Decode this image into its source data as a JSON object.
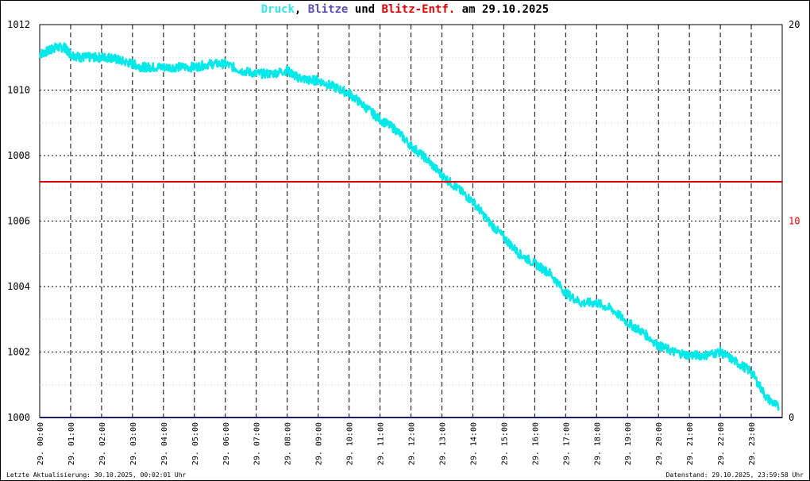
{
  "title": {
    "part1": "Druck",
    "sep1": ", ",
    "part2": "Blitze",
    "sep2": " und ",
    "part3": "Blitz-Entf.",
    "sep3": " am 29.10.2025",
    "color1": "#33e6e6",
    "color2": "#5a4fb4",
    "color3": "#e00000"
  },
  "footer": {
    "left": "Letzte Aktualisierung: 30.10.2025, 00:02:01 Uhr",
    "right": "Datenstand: 29.10.2025, 23:59:58 Uhr"
  },
  "chart_data": {
    "type": "line",
    "xlim": [
      0,
      24
    ],
    "ylim_left": [
      1000,
      1012
    ],
    "ylim_right": [
      0,
      20
    ],
    "left_ticks": [
      "1000",
      "1002",
      "1004",
      "1006",
      "1008",
      "1010",
      "1012"
    ],
    "right_ticks": [
      {
        "label": "0",
        "color": "#000000"
      },
      {
        "label": "10",
        "color": "#e00000"
      },
      {
        "label": "20",
        "color": "#000000"
      }
    ],
    "x_ticks": [
      "29. 00:00",
      "29. 01:00",
      "29. 02:00",
      "29. 03:00",
      "29. 04:00",
      "29. 05:00",
      "29. 06:00",
      "29. 07:00",
      "29. 08:00",
      "29. 09:00",
      "29. 10:00",
      "29. 11:00",
      "29. 12:00",
      "29. 13:00",
      "29. 14:00",
      "29. 15:00",
      "29. 16:00",
      "29. 17:00",
      "29. 18:00",
      "29. 19:00",
      "29. 20:00",
      "29. 21:00",
      "29. 22:00",
      "29. 23:00"
    ],
    "grid": true,
    "series": [
      {
        "key": "druck",
        "axis": "left",
        "color": "#00e8e8",
        "x": [
          0.0,
          0.3,
          0.5,
          0.8,
          1.0,
          1.3,
          1.6,
          2.0,
          2.3,
          2.6,
          3.0,
          3.3,
          3.6,
          4.0,
          4.5,
          5.0,
          5.5,
          6.0,
          6.5,
          7.0,
          7.5,
          8.0,
          8.3,
          8.7,
          9.0,
          9.5,
          10.0,
          10.5,
          11.0,
          11.5,
          12.0,
          12.5,
          13.0,
          13.5,
          14.0,
          14.5,
          15.0,
          15.5,
          16.0,
          16.5,
          17.0,
          17.5,
          18.0,
          18.5,
          19.0,
          19.5,
          20.0,
          20.5,
          21.0,
          21.5,
          22.0,
          22.5,
          23.0,
          23.5,
          23.9
        ],
        "y": [
          1011.1,
          1011.2,
          1011.3,
          1011.3,
          1011.1,
          1011.0,
          1011.0,
          1011.0,
          1011.0,
          1010.9,
          1010.8,
          1010.7,
          1010.7,
          1010.7,
          1010.7,
          1010.7,
          1010.8,
          1010.8,
          1010.6,
          1010.5,
          1010.5,
          1010.6,
          1010.4,
          1010.3,
          1010.3,
          1010.1,
          1009.9,
          1009.5,
          1009.1,
          1008.8,
          1008.3,
          1007.9,
          1007.4,
          1007.0,
          1006.6,
          1006.0,
          1005.5,
          1005.0,
          1004.7,
          1004.4,
          1003.8,
          1003.5,
          1003.5,
          1003.3,
          1002.9,
          1002.6,
          1002.2,
          1002.0,
          1001.9,
          1001.9,
          1002.0,
          1001.7,
          1001.4,
          1000.6,
          1000.3
        ]
      },
      {
        "key": "blitz-entf",
        "axis": "right",
        "color": "#e00000",
        "x": [
          0,
          24
        ],
        "y": [
          12,
          12
        ]
      },
      {
        "key": "blitze",
        "axis": "right",
        "color": "#1c1c6e",
        "x": [
          0,
          24
        ],
        "y": [
          0,
          0
        ]
      }
    ]
  }
}
